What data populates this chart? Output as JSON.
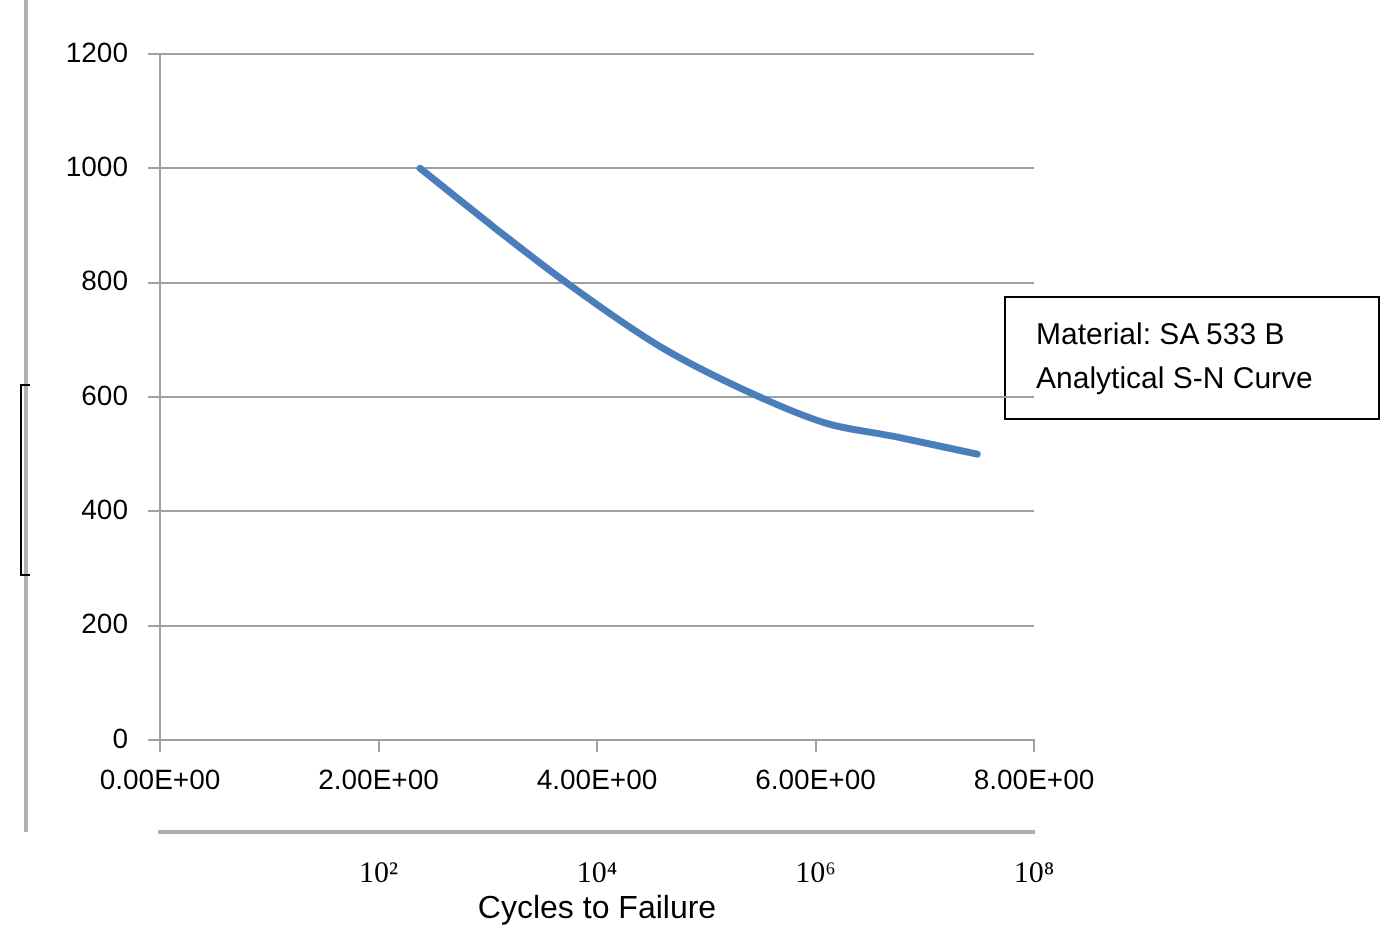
{
  "chart_data": {
    "type": "line",
    "xlabel": null,
    "x2label": "Cycles to Failure",
    "x": [
      2.38,
      3.05,
      3.72,
      4.58,
      5.49,
      6.1,
      6.72,
      7.48
    ],
    "series": [
      {
        "color": "#4a7ebb",
        "values": [
          1000,
          898,
          800,
          688,
          600,
          554,
          531,
          500
        ]
      }
    ],
    "xlim": [
      0,
      8
    ],
    "xticks": [
      {
        "value": 0,
        "label": "0.00E+00"
      },
      {
        "value": 2,
        "label": "2.00E+00"
      },
      {
        "value": 4,
        "label": "4.00E+00"
      },
      {
        "value": 6,
        "label": "6.00E+00"
      },
      {
        "value": 8,
        "label": "8.00E+00"
      }
    ],
    "x2lim": [
      1,
      100000000
    ],
    "x2ticks": [
      {
        "value": 100,
        "label": "10²"
      },
      {
        "value": 10000,
        "label": "10⁴"
      },
      {
        "value": 1000000,
        "label": "10⁶"
      },
      {
        "value": 100000000,
        "label": "10⁸"
      }
    ],
    "ylim": [
      0,
      1200
    ],
    "yticks": [
      0,
      200,
      400,
      600,
      800,
      1000,
      1200
    ],
    "log": "x2",
    "grid": "y",
    "legend": false,
    "marker": "none",
    "line_style": "solid",
    "annotations": [
      "Material: SA 533 B\nAnalytical S-N Curve"
    ]
  }
}
